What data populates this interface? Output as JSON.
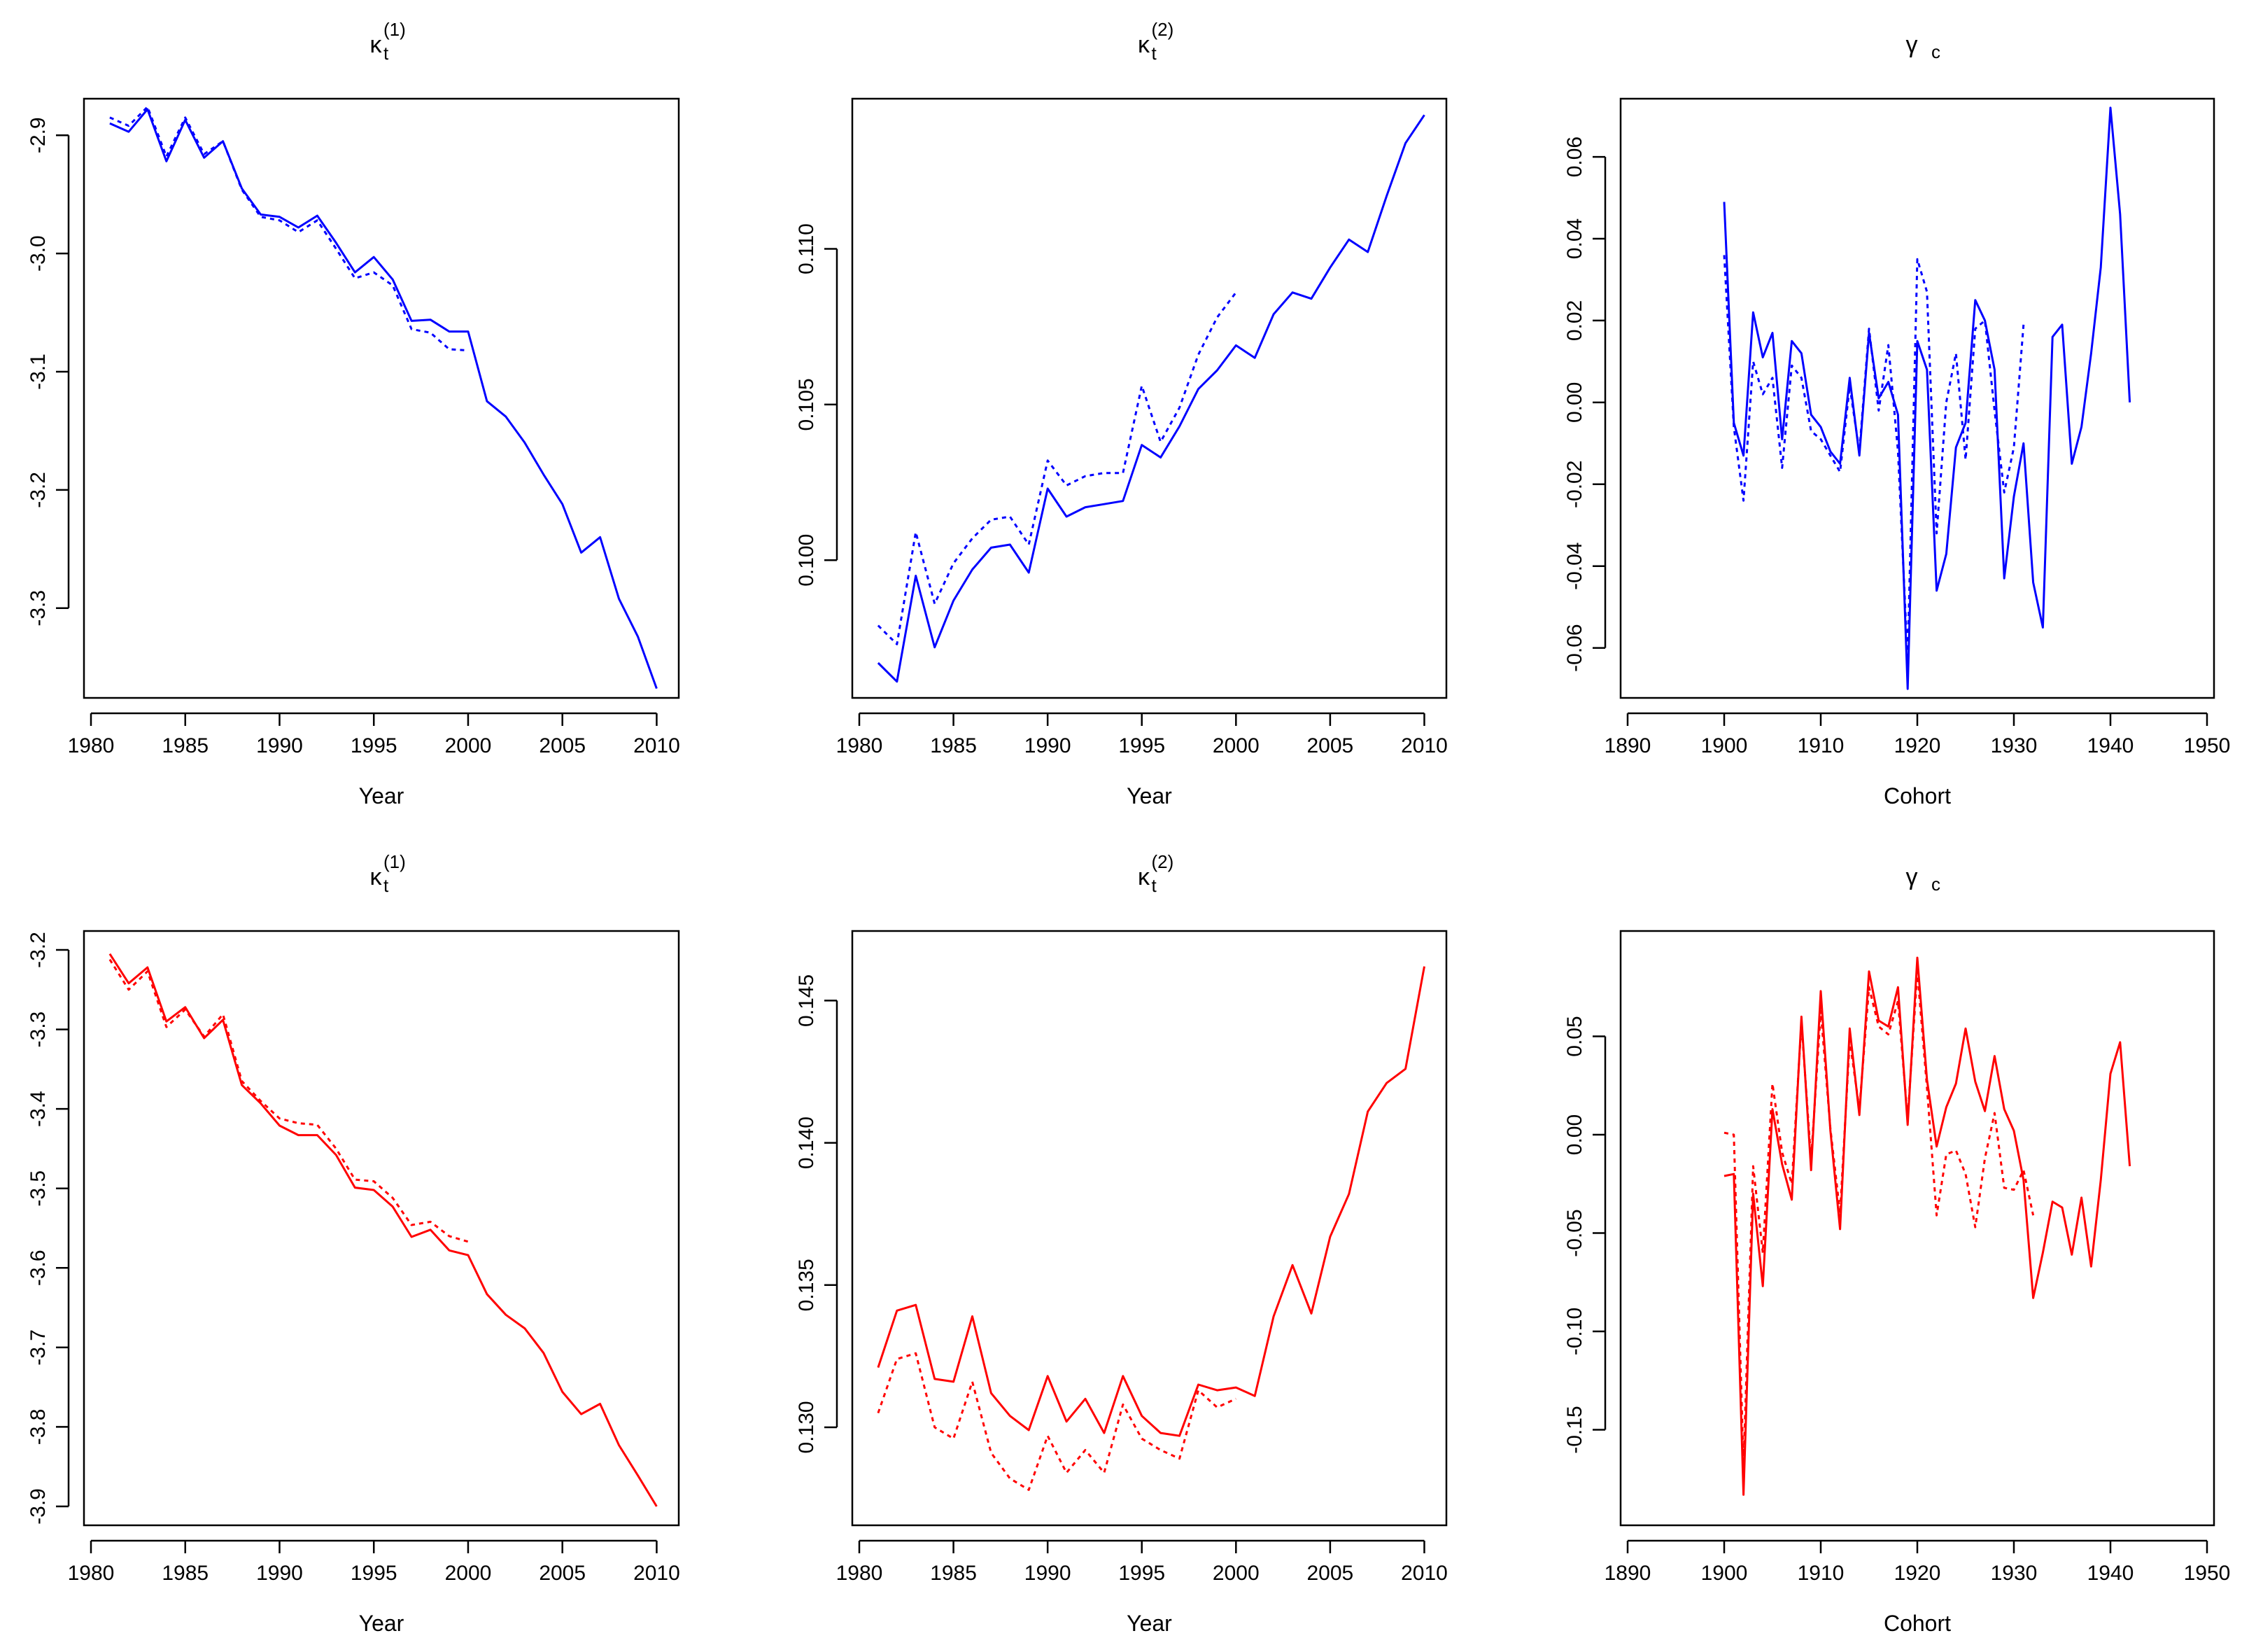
{
  "figure": {
    "layout": "2 rows x 3 columns",
    "colors": {
      "top_row": "#0000ff",
      "bottom_row": "#ff0000",
      "axes": "#000000"
    },
    "legend": "none"
  },
  "chart_data": [
    {
      "id": "top-kappa1",
      "type": "line",
      "title": {
        "symbol": "κ",
        "sub": "t",
        "sup": "(1)"
      },
      "xlabel": "Year",
      "ylabel": "",
      "color": "#0000ff",
      "xlim": [
        1980,
        2010.8
      ],
      "ylim": [
        -3.37,
        -2.875
      ],
      "xticks": [
        1980,
        1985,
        1990,
        1995,
        2000,
        2005,
        2010
      ],
      "yticks": [
        -2.9,
        -3.0,
        -3.1,
        -3.2,
        -3.3
      ],
      "ytick_labels": [
        "-2.9",
        "-3.0",
        "-3.1",
        "-3.2",
        "-3.3"
      ],
      "series": [
        {
          "name": "solid",
          "style": "solid",
          "x": [
            1981,
            1982,
            1983,
            1984,
            1985,
            1986,
            1987,
            1988,
            1989,
            1990,
            1991,
            1992,
            1993,
            1994,
            1995,
            1996,
            1997,
            1998,
            1999,
            2000,
            2001,
            2002,
            2003,
            2004,
            2005,
            2006,
            2007,
            2008,
            2009,
            2010
          ],
          "y": [
            -2.89,
            -2.897,
            -2.878,
            -2.922,
            -2.887,
            -2.919,
            -2.905,
            -2.945,
            -2.967,
            -2.969,
            -2.978,
            -2.968,
            -2.991,
            -3.016,
            -3.003,
            -3.022,
            -3.057,
            -3.056,
            -3.066,
            -3.066,
            -3.125,
            -3.138,
            -3.16,
            -3.187,
            -3.212,
            -3.253,
            -3.24,
            -3.292,
            -3.324,
            -3.368
          ]
        },
        {
          "name": "dotted",
          "style": "dotted",
          "x": [
            1981,
            1982,
            1983,
            1984,
            1985,
            1986,
            1987,
            1988,
            1989,
            1990,
            1991,
            1992,
            1993,
            1994,
            1995,
            1996,
            1997,
            1998,
            1999,
            2000
          ],
          "y": [
            -2.885,
            -2.892,
            -2.876,
            -2.918,
            -2.885,
            -2.916,
            -2.905,
            -2.946,
            -2.969,
            -2.972,
            -2.982,
            -2.972,
            -2.996,
            -3.021,
            -3.016,
            -3.027,
            -3.064,
            -3.067,
            -3.081,
            -3.082
          ]
        }
      ]
    },
    {
      "id": "top-kappa2",
      "type": "line",
      "title": {
        "symbol": "κ",
        "sub": "t",
        "sup": "(2)"
      },
      "xlabel": "Year",
      "ylabel": "",
      "color": "#0000ff",
      "xlim": [
        1980,
        2010.8
      ],
      "ylim": [
        0.0958,
        0.1146
      ],
      "xticks": [
        1980,
        1985,
        1990,
        1995,
        2000,
        2005,
        2010
      ],
      "yticks": [
        0.1,
        0.105,
        0.11
      ],
      "ytick_labels": [
        "0.100",
        "0.105",
        "0.110"
      ],
      "series": [
        {
          "name": "solid",
          "style": "solid",
          "x": [
            1981,
            1982,
            1983,
            1984,
            1985,
            1986,
            1987,
            1988,
            1989,
            1990,
            1991,
            1992,
            1993,
            1994,
            1995,
            1996,
            1997,
            1998,
            1999,
            2000,
            2001,
            2002,
            2003,
            2004,
            2005,
            2006,
            2007,
            2008,
            2009,
            2010
          ],
          "y": [
            0.0967,
            0.0961,
            0.0995,
            0.0972,
            0.0987,
            0.0997,
            0.1004,
            0.1005,
            0.0996,
            0.1023,
            0.1014,
            0.1017,
            0.1018,
            0.1019,
            0.1037,
            0.1033,
            0.1043,
            0.1055,
            0.1061,
            0.1069,
            0.1065,
            0.1079,
            0.1086,
            0.1084,
            0.1094,
            0.1103,
            0.1099,
            0.1117,
            0.1134,
            0.1143
          ]
        },
        {
          "name": "dotted",
          "style": "dotted",
          "x": [
            1981,
            1982,
            1983,
            1984,
            1985,
            1986,
            1987,
            1988,
            1989,
            1990,
            1991,
            1992,
            1993,
            1994,
            1995,
            1996,
            1997,
            1998,
            1999,
            2000
          ],
          "y": [
            0.0979,
            0.0973,
            0.1009,
            0.0986,
            0.0999,
            0.1007,
            0.1013,
            0.1014,
            0.1005,
            0.1032,
            0.1024,
            0.1027,
            0.1028,
            0.1028,
            0.1056,
            0.1038,
            0.1049,
            0.1066,
            0.1078,
            0.1086
          ]
        }
      ]
    },
    {
      "id": "top-gamma",
      "type": "line",
      "title": {
        "symbol": "γ",
        "sub": "c",
        "sup": ""
      },
      "xlabel": "Cohort",
      "ylabel": "",
      "color": "#0000ff",
      "xlim": [
        1890,
        1950
      ],
      "ylim": [
        -0.0705,
        0.0725
      ],
      "xticks": [
        1890,
        1900,
        1910,
        1920,
        1930,
        1940,
        1950
      ],
      "yticks": [
        0.06,
        0.04,
        0.02,
        0.0,
        -0.02,
        -0.04,
        -0.06
      ],
      "ytick_labels": [
        "0.06",
        "0.04",
        "0.02",
        "0.00",
        "-0.02",
        "-0.04",
        "-0.06"
      ],
      "series": [
        {
          "name": "solid",
          "style": "solid",
          "x": [
            1900,
            1901,
            1902,
            1903,
            1904,
            1905,
            1906,
            1907,
            1908,
            1909,
            1910,
            1911,
            1912,
            1913,
            1914,
            1915,
            1916,
            1917,
            1918,
            1919,
            1920,
            1921,
            1922,
            1923,
            1924,
            1925,
            1926,
            1927,
            1928,
            1929,
            1930,
            1931,
            1932,
            1933,
            1934,
            1935,
            1936,
            1937,
            1938,
            1939,
            1940,
            1941,
            1942
          ],
          "y": [
            0.049,
            -0.005,
            -0.013,
            0.022,
            0.011,
            0.017,
            -0.009,
            0.015,
            0.012,
            -0.003,
            -0.006,
            -0.012,
            -0.015,
            0.006,
            -0.013,
            0.017,
            0.001,
            0.005,
            -0.003,
            -0.07,
            0.015,
            0.008,
            -0.046,
            -0.037,
            -0.011,
            -0.005,
            0.025,
            0.02,
            0.008,
            -0.043,
            -0.023,
            -0.01,
            -0.044,
            -0.055,
            0.016,
            0.019,
            -0.015,
            -0.006,
            0.012,
            0.033,
            0.072,
            0.046,
            0.0
          ]
        },
        {
          "name": "dotted",
          "style": "dotted",
          "x": [
            1900,
            1901,
            1902,
            1903,
            1904,
            1905,
            1906,
            1907,
            1908,
            1909,
            1910,
            1911,
            1912,
            1913,
            1914,
            1915,
            1916,
            1917,
            1918,
            1919,
            1920,
            1921,
            1922,
            1923,
            1924,
            1925,
            1926,
            1927,
            1928,
            1929,
            1930,
            1931
          ],
          "y": [
            0.036,
            -0.006,
            -0.024,
            0.01,
            0.002,
            0.006,
            -0.016,
            0.009,
            0.006,
            -0.007,
            -0.009,
            -0.013,
            -0.017,
            0.004,
            -0.012,
            0.018,
            -0.002,
            0.014,
            -0.012,
            -0.063,
            0.035,
            0.027,
            -0.032,
            0.0,
            0.012,
            -0.014,
            0.018,
            0.02,
            -0.002,
            -0.022,
            -0.011,
            0.019
          ]
        }
      ]
    },
    {
      "id": "bottom-kappa1",
      "type": "line",
      "title": {
        "symbol": "κ",
        "sub": "t",
        "sup": "(1)"
      },
      "xlabel": "Year",
      "ylabel": "",
      "color": "#ff0000",
      "xlim": [
        1980,
        2010.8
      ],
      "ylim": [
        -3.915,
        -3.185
      ],
      "xticks": [
        1980,
        1985,
        1990,
        1995,
        2000,
        2005,
        2010
      ],
      "yticks": [
        -3.2,
        -3.3,
        -3.4,
        -3.5,
        -3.6,
        -3.7,
        -3.8,
        -3.9
      ],
      "ytick_labels": [
        "-3.2",
        "-3.3",
        "-3.4",
        "-3.5",
        "-3.6",
        "-3.7",
        "-3.8",
        "-3.9"
      ],
      "series": [
        {
          "name": "solid",
          "style": "solid",
          "x": [
            1981,
            1982,
            1983,
            1984,
            1985,
            1986,
            1987,
            1988,
            1989,
            1990,
            1991,
            1992,
            1993,
            1994,
            1995,
            1996,
            1997,
            1998,
            1999,
            2000,
            2001,
            2002,
            2003,
            2004,
            2005,
            2006,
            2007,
            2008,
            2009,
            2010
          ],
          "y": [
            -3.205,
            -3.242,
            -3.222,
            -3.29,
            -3.272,
            -3.311,
            -3.288,
            -3.37,
            -3.393,
            -3.421,
            -3.433,
            -3.433,
            -3.458,
            -3.499,
            -3.502,
            -3.523,
            -3.561,
            -3.552,
            -3.578,
            -3.584,
            -3.633,
            -3.659,
            -3.676,
            -3.707,
            -3.756,
            -3.784,
            -3.771,
            -3.823,
            -3.861,
            -3.9
          ]
        },
        {
          "name": "dotted",
          "style": "dotted",
          "x": [
            1981,
            1982,
            1983,
            1984,
            1985,
            1986,
            1987,
            1988,
            1989,
            1990,
            1991,
            1992,
            1993,
            1994,
            1995,
            1996,
            1997,
            1998,
            1999,
            2000
          ],
          "y": [
            -3.212,
            -3.25,
            -3.227,
            -3.297,
            -3.275,
            -3.309,
            -3.281,
            -3.365,
            -3.39,
            -3.412,
            -3.418,
            -3.42,
            -3.45,
            -3.489,
            -3.491,
            -3.512,
            -3.546,
            -3.542,
            -3.56,
            -3.567
          ]
        }
      ]
    },
    {
      "id": "bottom-kappa2",
      "type": "line",
      "title": {
        "symbol": "κ",
        "sub": "t",
        "sup": "(2)"
      },
      "xlabel": "Year",
      "ylabel": "",
      "color": "#ff0000",
      "xlim": [
        1980,
        2010.8
      ],
      "ylim": [
        0.1268,
        0.1472
      ],
      "xticks": [
        1980,
        1985,
        1990,
        1995,
        2000,
        2005,
        2010
      ],
      "yticks": [
        0.13,
        0.135,
        0.14,
        0.145
      ],
      "ytick_labels": [
        "0.130",
        "0.135",
        "0.140",
        "0.145"
      ],
      "series": [
        {
          "name": "solid",
          "style": "solid",
          "x": [
            1981,
            1982,
            1983,
            1984,
            1985,
            1986,
            1987,
            1988,
            1989,
            1990,
            1991,
            1992,
            1993,
            1994,
            1995,
            1996,
            1997,
            1998,
            1999,
            2000,
            2001,
            2002,
            2003,
            2004,
            2005,
            2006,
            2007,
            2008,
            2009,
            2010
          ],
          "y": [
            0.1321,
            0.1341,
            0.1343,
            0.1317,
            0.1316,
            0.1339,
            0.1312,
            0.1304,
            0.1299,
            0.1318,
            0.1302,
            0.131,
            0.1298,
            0.1318,
            0.1304,
            0.1298,
            0.1297,
            0.1315,
            0.1313,
            0.1314,
            0.1311,
            0.1339,
            0.1357,
            0.134,
            0.1367,
            0.1382,
            0.1411,
            0.1421,
            0.1426,
            0.1462
          ]
        },
        {
          "name": "dotted",
          "style": "dotted",
          "x": [
            1981,
            1982,
            1983,
            1984,
            1985,
            1986,
            1987,
            1988,
            1989,
            1990,
            1991,
            1992,
            1993,
            1994,
            1995,
            1996,
            1997,
            1998,
            1999,
            2000
          ],
          "y": [
            0.1305,
            0.1324,
            0.1326,
            0.13,
            0.1296,
            0.1316,
            0.1291,
            0.1282,
            0.1278,
            0.1297,
            0.1284,
            0.1292,
            0.1284,
            0.1308,
            0.1296,
            0.1292,
            0.1289,
            0.1313,
            0.1307,
            0.131
          ]
        }
      ]
    },
    {
      "id": "bottom-gamma",
      "type": "line",
      "title": {
        "symbol": "γ",
        "sub": "c",
        "sup": ""
      },
      "xlabel": "Cohort",
      "ylabel": "",
      "color": "#ff0000",
      "xlim": [
        1890,
        1950
      ],
      "ylim": [
        -0.195,
        0.1
      ],
      "xticks": [
        1890,
        1900,
        1910,
        1920,
        1930,
        1940,
        1950
      ],
      "yticks": [
        0.05,
        0.0,
        -0.05,
        -0.1,
        -0.15
      ],
      "ytick_labels": [
        "0.05",
        "0.00",
        "-0.05",
        "-0.10",
        "-0.15"
      ],
      "series": [
        {
          "name": "solid",
          "style": "solid",
          "x": [
            1900,
            1901,
            1902,
            1903,
            1904,
            1905,
            1906,
            1907,
            1908,
            1909,
            1910,
            1911,
            1912,
            1913,
            1914,
            1915,
            1916,
            1917,
            1918,
            1919,
            1920,
            1921,
            1922,
            1923,
            1924,
            1925,
            1926,
            1927,
            1928,
            1929,
            1930,
            1931,
            1932,
            1933,
            1934,
            1935,
            1936,
            1937,
            1938,
            1939,
            1940,
            1941,
            1942
          ],
          "y": [
            -0.021,
            -0.02,
            -0.183,
            -0.03,
            -0.077,
            0.013,
            -0.015,
            -0.033,
            0.06,
            -0.018,
            0.073,
            0.002,
            -0.048,
            0.054,
            0.01,
            0.083,
            0.058,
            0.055,
            0.075,
            0.005,
            0.09,
            0.028,
            -0.006,
            0.014,
            0.026,
            0.054,
            0.027,
            0.012,
            0.04,
            0.013,
            0.002,
            -0.023,
            -0.083,
            -0.06,
            -0.034,
            -0.037,
            -0.061,
            -0.032,
            -0.067,
            -0.023,
            0.031,
            0.047,
            -0.016
          ]
        },
        {
          "name": "dotted",
          "style": "dotted",
          "x": [
            1900,
            1901,
            1902,
            1903,
            1904,
            1905,
            1906,
            1907,
            1908,
            1909,
            1910,
            1911,
            1912,
            1913,
            1914,
            1915,
            1916,
            1917,
            1918,
            1919,
            1920,
            1921,
            1922,
            1923,
            1924,
            1925,
            1926,
            1927,
            1928,
            1929,
            1930,
            1931,
            1932
          ],
          "y": [
            0.001,
            0.0,
            -0.168,
            -0.016,
            -0.06,
            0.026,
            -0.009,
            -0.025,
            0.057,
            -0.013,
            0.063,
            0.003,
            -0.04,
            0.048,
            0.013,
            0.075,
            0.055,
            0.051,
            0.068,
            0.008,
            0.083,
            0.024,
            -0.041,
            -0.01,
            -0.008,
            -0.02,
            -0.047,
            -0.012,
            0.011,
            -0.027,
            -0.028,
            -0.018,
            -0.041
          ]
        }
      ]
    }
  ]
}
